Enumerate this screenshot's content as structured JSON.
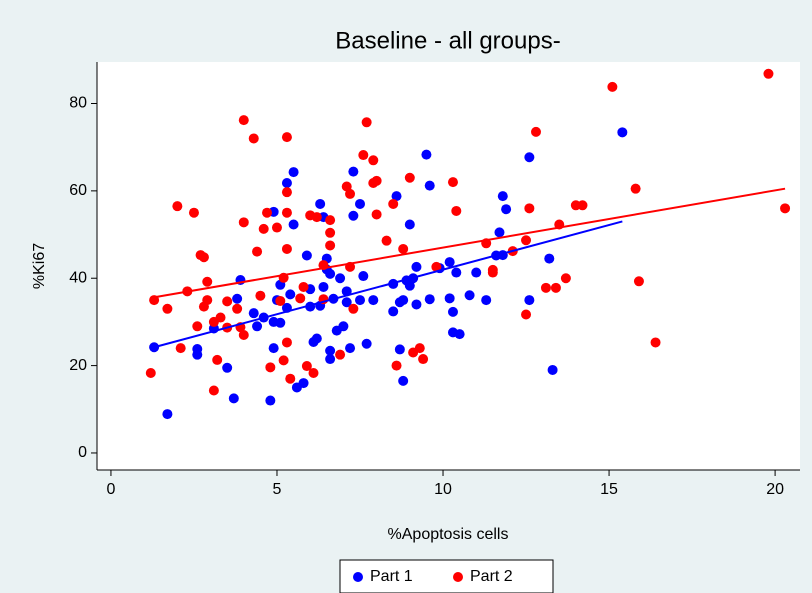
{
  "chart_data": {
    "type": "scatter",
    "title": "Baseline - all groups-",
    "x_label": "%Apoptosis cells",
    "y_label": "%Ki67",
    "xlim": [
      -0.42,
      20.75
    ],
    "ylim": [
      -3.9,
      89.5
    ],
    "xticks": [
      0,
      5,
      10,
      15,
      20
    ],
    "yticks": [
      0,
      20,
      40,
      60,
      80
    ],
    "series": [
      {
        "name": "Part 1",
        "color": "#0000ff",
        "x": [
          1.3,
          1.7,
          2.6,
          2.6,
          3.1,
          3.5,
          3.7,
          3.8,
          3.9,
          4.3,
          4.4,
          4.6,
          4.8,
          4.9,
          4.9,
          4.9,
          5.0,
          5.1,
          5.1,
          5.3,
          5.3,
          5.4,
          5.5,
          5.5,
          5.6,
          5.8,
          5.9,
          6.0,
          6.0,
          6.1,
          6.2,
          6.3,
          6.3,
          6.4,
          6.4,
          6.5,
          6.5,
          6.6,
          6.6,
          6.6,
          6.7,
          6.8,
          6.9,
          7.0,
          7.1,
          7.1,
          7.2,
          7.3,
          7.3,
          7.5,
          7.5,
          7.6,
          7.7,
          7.9,
          8.5,
          8.5,
          8.6,
          8.7,
          8.7,
          8.8,
          8.8,
          8.9,
          9.0,
          9.0,
          9.1,
          9.2,
          9.2,
          9.5,
          9.6,
          9.6,
          9.9,
          10.2,
          10.2,
          10.3,
          10.3,
          10.4,
          10.5,
          10.8,
          11.0,
          11.3,
          11.6,
          11.7,
          11.8,
          11.8,
          11.9,
          12.6,
          12.6,
          13.2,
          13.3,
          15.4
        ],
        "values": [
          24.2,
          8.9,
          22.5,
          23.8,
          28.5,
          19.5,
          12.5,
          35.3,
          39.6,
          32,
          29,
          31,
          12,
          55.2,
          30,
          24,
          35,
          38.5,
          29.8,
          61.8,
          33.2,
          36.3,
          64.3,
          52.3,
          15,
          16,
          45.2,
          33.5,
          37.5,
          25.4,
          26.2,
          57,
          33.7,
          38,
          54,
          44.5,
          42,
          41,
          21.5,
          23.4,
          35.3,
          28,
          40,
          29,
          34.5,
          37,
          24,
          64.4,
          54.3,
          57,
          35,
          40.5,
          25,
          35,
          32.4,
          38.7,
          58.8,
          34.5,
          23.7,
          16.5,
          35,
          39.5,
          38.3,
          52.3,
          40,
          34,
          42.6,
          68.3,
          61.2,
          35.2,
          42.3,
          35.4,
          43.7,
          32.3,
          27.6,
          41.3,
          27.2,
          36.1,
          41.3,
          35,
          45.2,
          50.5,
          45.3,
          58.8,
          55.8,
          67.7,
          35,
          44.5,
          19,
          73.4
        ]
      },
      {
        "name": "Part 2",
        "color": "#ff0000",
        "x": [
          1.2,
          1.3,
          1.7,
          2.0,
          2.1,
          2.3,
          2.5,
          2.6,
          2.7,
          2.8,
          2.8,
          2.9,
          2.9,
          3.1,
          3.1,
          3.2,
          3.3,
          3.5,
          3.5,
          3.8,
          3.9,
          4.0,
          4.0,
          4.0,
          4.3,
          4.4,
          4.5,
          4.6,
          4.7,
          4.8,
          5.0,
          5.1,
          5.2,
          5.2,
          5.3,
          5.3,
          5.3,
          5.3,
          5.3,
          5.4,
          5.7,
          5.8,
          5.9,
          6.0,
          6.1,
          6.2,
          6.4,
          6.4,
          6.6,
          6.6,
          6.6,
          6.9,
          7.1,
          7.2,
          7.2,
          7.3,
          7.6,
          7.7,
          7.9,
          7.9,
          8.0,
          8.0,
          8.3,
          8.5,
          8.6,
          8.8,
          9.0,
          9.1,
          9.3,
          9.4,
          9.8,
          10.3,
          10.4,
          11.3,
          11.5,
          11.5,
          12.1,
          12.5,
          12.5,
          12.6,
          12.8,
          13.1,
          13.4,
          13.5,
          13.7,
          14.0,
          14.2,
          15.1,
          15.8,
          15.9,
          16.4,
          19.8,
          20.3
        ],
        "values": [
          18.3,
          35,
          33,
          56.5,
          24,
          37,
          55,
          29,
          45.3,
          44.8,
          33.5,
          39.2,
          35,
          30,
          14.3,
          21.3,
          31,
          28.7,
          34.7,
          33,
          28.8,
          27,
          52.8,
          76.2,
          72,
          46.1,
          36,
          51.3,
          55,
          19.6,
          51.6,
          34.8,
          40.1,
          21.2,
          72.3,
          59.7,
          55,
          46.7,
          25.3,
          17,
          35.4,
          38,
          19.9,
          54.4,
          18.3,
          54,
          35.2,
          43,
          47.5,
          50.4,
          53.3,
          22.5,
          61,
          59.3,
          42.6,
          33,
          68.2,
          75.7,
          67,
          61.8,
          54.6,
          62.3,
          48.6,
          57,
          20,
          46.7,
          63,
          23,
          24,
          21.5,
          42.6,
          62,
          55.4,
          48,
          41.3,
          41.9,
          46.2,
          31.7,
          48.7,
          56,
          73.5,
          37.8,
          37.8,
          52.3,
          40,
          56.7,
          56.7,
          83.8,
          60.5,
          39.3,
          25.3,
          86.8,
          56
        ]
      }
    ],
    "fit_lines": [
      {
        "color": "#0000ff",
        "x": [
          1.2,
          15.4
        ],
        "values": [
          24,
          53
        ]
      },
      {
        "color": "#ff0000",
        "x": [
          1.2,
          20.3
        ],
        "values": [
          35.5,
          60.5
        ]
      }
    ]
  }
}
